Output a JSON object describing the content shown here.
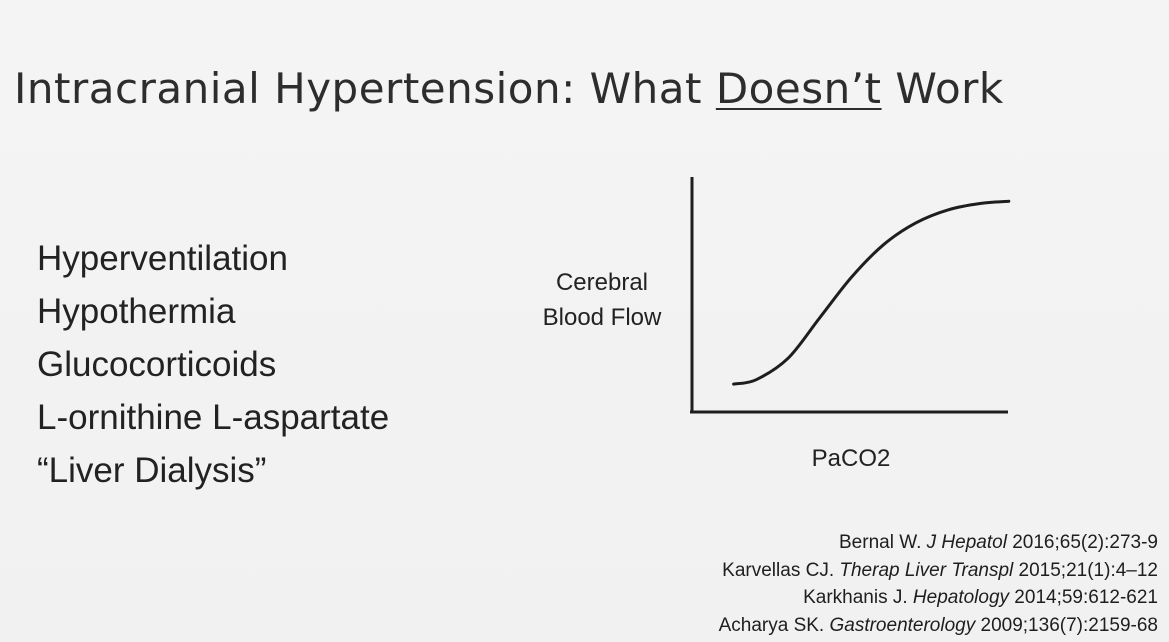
{
  "title": {
    "before": "Intracranial Hypertension: What ",
    "emphasis": "Doesn’t",
    "after": " Work"
  },
  "bullets": [
    "Hyperventilation",
    "Hypothermia",
    "Glucocorticoids",
    "L-ornithine L-aspartate",
    "“Liver Dialysis”"
  ],
  "chart_data": {
    "type": "line",
    "title": "",
    "xlabel": "PaCO2",
    "ylabel_lines": [
      "Cerebral",
      "Blood Flow"
    ],
    "xlim": [
      0,
      1
    ],
    "ylim": [
      0,
      1
    ],
    "grid": false,
    "ticks": false,
    "series": [
      {
        "shape": "sigmoid",
        "x": [
          0.13,
          0.2,
          0.3,
          0.4,
          0.5,
          0.6,
          0.7,
          0.8,
          0.9,
          0.99
        ],
        "y": [
          0.13,
          0.15,
          0.25,
          0.44,
          0.63,
          0.78,
          0.88,
          0.94,
          0.97,
          0.98
        ]
      }
    ]
  },
  "references": [
    {
      "author": "Bernal W. ",
      "journal": "J Hepatol",
      "details": " 2016;65(2):273-9"
    },
    {
      "author": "Karvellas CJ. ",
      "journal": "Therap Liver Transpl",
      "details": " 2015;21(1):4–12"
    },
    {
      "author": "Karkhanis J. ",
      "journal": "Hepatology",
      "details": " 2014;59:612-621"
    },
    {
      "author": "Acharya SK. ",
      "journal": "Gastroenterology",
      "details": " 2009;136(7):2159-68"
    }
  ]
}
